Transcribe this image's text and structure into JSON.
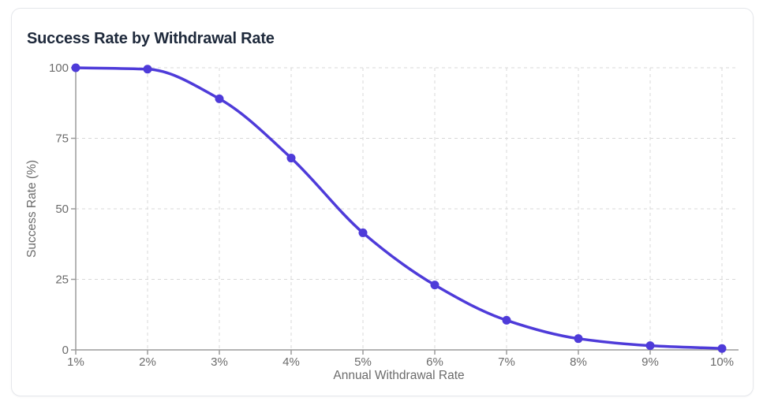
{
  "card": {
    "title": "Success Rate by Withdrawal Rate"
  },
  "chart_data": {
    "type": "line",
    "title": "Success Rate by Withdrawal Rate",
    "xlabel": "Annual Withdrawal Rate",
    "ylabel": "Success Rate (%)",
    "x": [
      1,
      2,
      3,
      4,
      5,
      6,
      7,
      8,
      9,
      10
    ],
    "x_tick_labels": [
      "1%",
      "2%",
      "3%",
      "4%",
      "5%",
      "6%",
      "7%",
      "8%",
      "9%",
      "10%"
    ],
    "values": [
      100,
      99.5,
      89,
      68,
      41.5,
      23,
      10.5,
      4,
      1.5,
      0.5
    ],
    "y_ticks": [
      0,
      25,
      50,
      75,
      100
    ],
    "y_tick_labels": [
      "0",
      "25",
      "50",
      "75",
      "100"
    ],
    "ylim": [
      0,
      100
    ],
    "xlim": [
      1,
      10
    ],
    "grid": true,
    "grid_style": "dashed",
    "legend": "none",
    "curve": "monotone",
    "colors": {
      "line": "#4e3bd9",
      "marker": "#4e3bd9",
      "grid": "#d8d8d8",
      "axis": "#9b9b9b",
      "tick_text": "#6b6b6b",
      "axis_label_text": "#6b6b6b",
      "title_text": "#1e293b",
      "card_border": "#e5e7eb",
      "background": "#ffffff"
    },
    "marker_radius": 5.5,
    "line_width": 3.5
  }
}
